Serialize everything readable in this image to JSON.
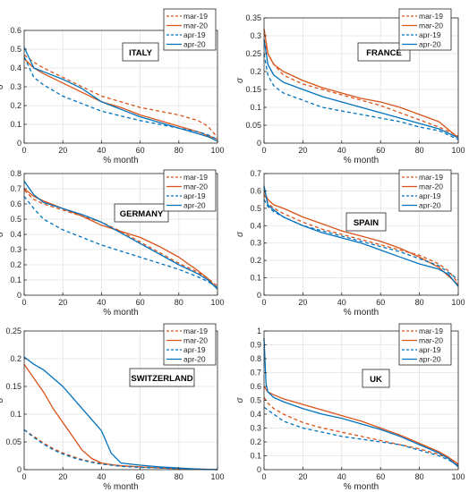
{
  "figure": {
    "series_styles": [
      {
        "name": "mar-19",
        "color": "#D95319",
        "dash": "4,3"
      },
      {
        "name": "mar-20",
        "color": "#D95319",
        "dash": ""
      },
      {
        "name": "apr-19",
        "color": "#0072BD",
        "dash": "4,3"
      },
      {
        "name": "apr-20",
        "color": "#0072BD",
        "dash": ""
      }
    ]
  },
  "chart_data": [
    {
      "type": "line",
      "title": "ITALY",
      "xlabel": "% month",
      "ylabel": "σ",
      "xlim": [
        0,
        100
      ],
      "ylim": [
        0,
        0.6
      ],
      "xticks": [
        0,
        20,
        40,
        60,
        80,
        100
      ],
      "yticks": [
        0,
        0.1,
        0.2,
        0.3,
        0.4,
        0.5,
        0.6
      ],
      "ytick_labels": [
        "0",
        "0.1",
        "0.2",
        "0.3",
        "0.4",
        "0.5",
        "0.6"
      ],
      "legend": "top-right",
      "grid": true,
      "x": [
        0,
        5,
        10,
        20,
        30,
        40,
        50,
        60,
        70,
        80,
        90,
        95,
        100
      ],
      "series": [
        {
          "name": "mar-19",
          "values": [
            0.47,
            0.43,
            0.4,
            0.35,
            0.3,
            0.25,
            0.22,
            0.19,
            0.17,
            0.15,
            0.12,
            0.09,
            0.03
          ]
        },
        {
          "name": "mar-20",
          "values": [
            0.45,
            0.4,
            0.37,
            0.32,
            0.27,
            0.22,
            0.19,
            0.15,
            0.12,
            0.09,
            0.06,
            0.04,
            0.02
          ]
        },
        {
          "name": "apr-19",
          "values": [
            0.46,
            0.35,
            0.31,
            0.25,
            0.21,
            0.17,
            0.145,
            0.12,
            0.1,
            0.08,
            0.06,
            0.045,
            0.02
          ]
        },
        {
          "name": "apr-20",
          "values": [
            0.51,
            0.4,
            0.38,
            0.34,
            0.29,
            0.22,
            0.18,
            0.14,
            0.11,
            0.08,
            0.05,
            0.035,
            0.01
          ]
        }
      ]
    },
    {
      "type": "line",
      "title": "FRANCE",
      "xlabel": "% month",
      "ylabel": "σ",
      "xlim": [
        0,
        100
      ],
      "ylim": [
        0,
        0.35
      ],
      "xticks": [
        0,
        20,
        40,
        60,
        80,
        100
      ],
      "yticks": [
        0,
        0.05,
        0.1,
        0.15,
        0.2,
        0.25,
        0.3,
        0.35
      ],
      "ytick_labels": [
        "0",
        "0.05",
        "0.1",
        "0.15",
        "0.2",
        "0.25",
        "0.3",
        "0.35"
      ],
      "legend": "top-right",
      "grid": true,
      "x": [
        0,
        2,
        5,
        10,
        20,
        30,
        40,
        50,
        60,
        70,
        80,
        90,
        100
      ],
      "series": [
        {
          "name": "mar-19",
          "values": [
            0.29,
            0.25,
            0.22,
            0.19,
            0.165,
            0.15,
            0.135,
            0.12,
            0.105,
            0.085,
            0.065,
            0.045,
            0.02
          ]
        },
        {
          "name": "mar-20",
          "values": [
            0.32,
            0.25,
            0.22,
            0.2,
            0.175,
            0.155,
            0.14,
            0.125,
            0.115,
            0.1,
            0.08,
            0.06,
            0.015
          ]
        },
        {
          "name": "apr-19",
          "values": [
            0.25,
            0.19,
            0.16,
            0.14,
            0.12,
            0.1,
            0.09,
            0.08,
            0.07,
            0.06,
            0.045,
            0.035,
            0.01
          ]
        },
        {
          "name": "apr-20",
          "values": [
            0.29,
            0.22,
            0.19,
            0.17,
            0.15,
            0.13,
            0.115,
            0.1,
            0.085,
            0.07,
            0.055,
            0.04,
            0.015
          ]
        }
      ]
    },
    {
      "type": "line",
      "title": "GERMANY",
      "xlabel": "% month",
      "ylabel": "σ",
      "xlim": [
        0,
        100
      ],
      "ylim": [
        0,
        0.8
      ],
      "xticks": [
        0,
        20,
        40,
        60,
        80,
        100
      ],
      "yticks": [
        0,
        0.1,
        0.2,
        0.3,
        0.4,
        0.5,
        0.6,
        0.7,
        0.8
      ],
      "ytick_labels": [
        "0",
        "0.1",
        "0.2",
        "0.3",
        "0.4",
        "0.5",
        "0.6",
        "0.7",
        "0.8"
      ],
      "legend": "top-right",
      "grid": true,
      "x": [
        0,
        5,
        10,
        20,
        30,
        40,
        50,
        60,
        70,
        80,
        90,
        95,
        100
      ],
      "series": [
        {
          "name": "mar-19",
          "values": [
            0.69,
            0.63,
            0.6,
            0.56,
            0.52,
            0.48,
            0.42,
            0.35,
            0.28,
            0.21,
            0.15,
            0.11,
            0.06
          ]
        },
        {
          "name": "mar-20",
          "values": [
            0.7,
            0.65,
            0.62,
            0.57,
            0.52,
            0.46,
            0.42,
            0.38,
            0.32,
            0.25,
            0.16,
            0.11,
            0.04
          ]
        },
        {
          "name": "apr-19",
          "values": [
            0.65,
            0.57,
            0.5,
            0.43,
            0.38,
            0.33,
            0.29,
            0.25,
            0.21,
            0.17,
            0.12,
            0.09,
            0.05
          ]
        },
        {
          "name": "apr-20",
          "values": [
            0.75,
            0.66,
            0.61,
            0.57,
            0.53,
            0.48,
            0.41,
            0.34,
            0.27,
            0.2,
            0.14,
            0.1,
            0.04
          ]
        }
      ]
    },
    {
      "type": "line",
      "title": "SPAIN",
      "xlabel": "% month",
      "ylabel": "σ",
      "xlim": [
        0,
        100
      ],
      "ylim": [
        0,
        0.7
      ],
      "xticks": [
        0,
        20,
        40,
        60,
        80,
        100
      ],
      "yticks": [
        0,
        0.1,
        0.2,
        0.3,
        0.4,
        0.5,
        0.6,
        0.7
      ],
      "ytick_labels": [
        "0",
        "0.1",
        "0.2",
        "0.3",
        "0.4",
        "0.5",
        "0.6",
        "0.7"
      ],
      "legend": "top-right",
      "grid": true,
      "x": [
        0,
        2,
        5,
        10,
        20,
        30,
        40,
        50,
        60,
        70,
        80,
        90,
        95,
        100
      ],
      "series": [
        {
          "name": "mar-19",
          "values": [
            0.58,
            0.53,
            0.5,
            0.47,
            0.42,
            0.38,
            0.35,
            0.32,
            0.29,
            0.26,
            0.23,
            0.18,
            0.14,
            0.07
          ]
        },
        {
          "name": "mar-20",
          "values": [
            0.6,
            0.55,
            0.52,
            0.5,
            0.45,
            0.41,
            0.37,
            0.34,
            0.31,
            0.27,
            0.22,
            0.16,
            0.11,
            0.06
          ]
        },
        {
          "name": "apr-19",
          "values": [
            0.55,
            0.51,
            0.48,
            0.45,
            0.4,
            0.37,
            0.34,
            0.31,
            0.28,
            0.25,
            0.21,
            0.17,
            0.13,
            0.09
          ]
        },
        {
          "name": "apr-20",
          "values": [
            0.63,
            0.52,
            0.49,
            0.45,
            0.4,
            0.36,
            0.33,
            0.3,
            0.26,
            0.22,
            0.18,
            0.15,
            0.12,
            0.05
          ]
        }
      ]
    },
    {
      "type": "line",
      "title": "SWITZERLAND",
      "xlabel": "% month",
      "ylabel": "σ",
      "xlim": [
        0,
        100
      ],
      "ylim": [
        0,
        0.25
      ],
      "xticks": [
        0,
        20,
        40,
        60,
        80,
        100
      ],
      "yticks": [
        0,
        0.05,
        0.1,
        0.15,
        0.2,
        0.25
      ],
      "ytick_labels": [
        "0",
        "0.05",
        "0.1",
        "0.15",
        "0.2",
        "0.25"
      ],
      "legend": "top-right",
      "grid": true,
      "x": [
        0,
        5,
        10,
        15,
        20,
        25,
        30,
        35,
        40,
        45,
        50,
        60,
        70,
        80,
        90,
        100
      ],
      "series": [
        {
          "name": "mar-19",
          "values": [
            0.072,
            0.06,
            0.048,
            0.038,
            0.03,
            0.024,
            0.018,
            0.014,
            0.011,
            0.009,
            0.007,
            0.005,
            0.003,
            0.002,
            0.001,
            0.0
          ]
        },
        {
          "name": "mar-20",
          "values": [
            0.19,
            0.165,
            0.14,
            0.11,
            0.085,
            0.06,
            0.035,
            0.02,
            0.012,
            0.009,
            0.007,
            0.005,
            0.003,
            0.002,
            0.001,
            0.0
          ]
        },
        {
          "name": "apr-19",
          "values": [
            0.072,
            0.058,
            0.046,
            0.036,
            0.028,
            0.022,
            0.017,
            0.013,
            0.01,
            0.008,
            0.006,
            0.004,
            0.003,
            0.002,
            0.001,
            0.0
          ]
        },
        {
          "name": "apr-20",
          "values": [
            0.203,
            0.19,
            0.18,
            0.165,
            0.15,
            0.13,
            0.11,
            0.09,
            0.07,
            0.03,
            0.012,
            0.008,
            0.005,
            0.003,
            0.001,
            0.0
          ]
        }
      ]
    },
    {
      "type": "line",
      "title": "UK",
      "xlabel": "% month",
      "ylabel": "σ",
      "xlim": [
        0,
        100
      ],
      "ylim": [
        0,
        1
      ],
      "xticks": [
        0,
        20,
        40,
        60,
        80,
        100
      ],
      "yticks": [
        0,
        0.1,
        0.2,
        0.3,
        0.4,
        0.5,
        0.6,
        0.7,
        0.8,
        0.9,
        1
      ],
      "ytick_labels": [
        "0",
        "0.1",
        "0.2",
        "0.3",
        "0.4",
        "0.5",
        "0.6",
        "0.7",
        "0.8",
        "0.9",
        "1"
      ],
      "legend": "top-right",
      "grid": true,
      "x": [
        0,
        1,
        2,
        5,
        10,
        20,
        30,
        40,
        50,
        60,
        70,
        80,
        90,
        95,
        100
      ],
      "series": [
        {
          "name": "mar-19",
          "values": [
            0.52,
            0.5,
            0.48,
            0.44,
            0.4,
            0.34,
            0.3,
            0.27,
            0.24,
            0.21,
            0.18,
            0.15,
            0.11,
            0.08,
            0.03
          ]
        },
        {
          "name": "mar-20",
          "values": [
            0.6,
            0.58,
            0.56,
            0.54,
            0.51,
            0.47,
            0.43,
            0.39,
            0.35,
            0.3,
            0.25,
            0.19,
            0.13,
            0.09,
            0.04
          ]
        },
        {
          "name": "apr-19",
          "values": [
            0.45,
            0.44,
            0.43,
            0.4,
            0.35,
            0.3,
            0.27,
            0.24,
            0.22,
            0.2,
            0.18,
            0.14,
            0.1,
            0.07,
            0.03
          ]
        },
        {
          "name": "apr-20",
          "values": [
            0.95,
            0.62,
            0.56,
            0.52,
            0.49,
            0.44,
            0.4,
            0.37,
            0.33,
            0.29,
            0.24,
            0.18,
            0.12,
            0.08,
            0.02
          ]
        }
      ]
    }
  ]
}
